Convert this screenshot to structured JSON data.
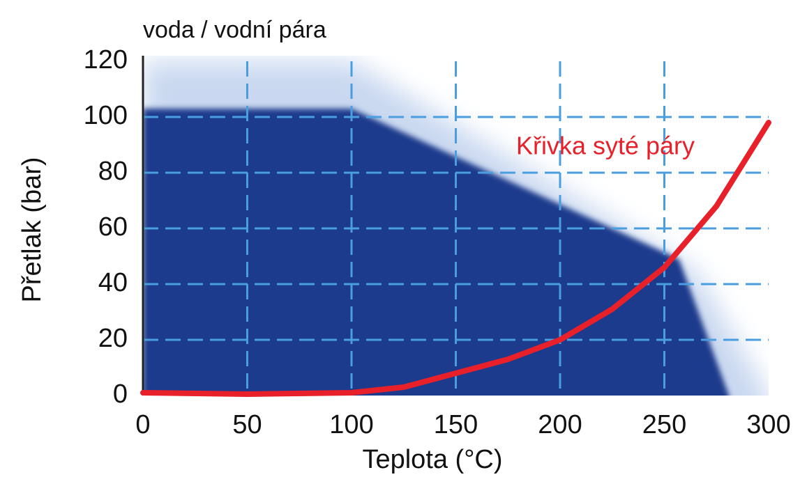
{
  "chart_data": {
    "type": "line",
    "title": "voda / vodní pára",
    "xlabel": "Teplota (°C)",
    "ylabel": "Přetlak (bar)",
    "xlim": [
      0,
      300
    ],
    "ylim": [
      0,
      120
    ],
    "xticks": [
      0,
      50,
      100,
      150,
      200,
      250,
      300
    ],
    "yticks": [
      0,
      20,
      40,
      60,
      80,
      100,
      120
    ],
    "grid": true,
    "areas": [
      {
        "color": "#c9d8f0",
        "x": [
          0,
          100,
          265,
          300
        ],
        "y": [
          120,
          120,
          45,
          0
        ]
      },
      {
        "color": "#1b3a8c",
        "x": [
          0,
          100,
          257,
          281
        ],
        "y": [
          103,
          103,
          49,
          0
        ]
      }
    ],
    "series": [
      {
        "name": "Křivka syté páry",
        "color": "#e8202a",
        "x": [
          0,
          50,
          100,
          125,
          150,
          175,
          200,
          225,
          250,
          275,
          300
        ],
        "values": [
          1,
          0.5,
          1,
          3,
          8,
          13,
          20,
          31,
          46,
          68,
          98
        ]
      }
    ]
  }
}
